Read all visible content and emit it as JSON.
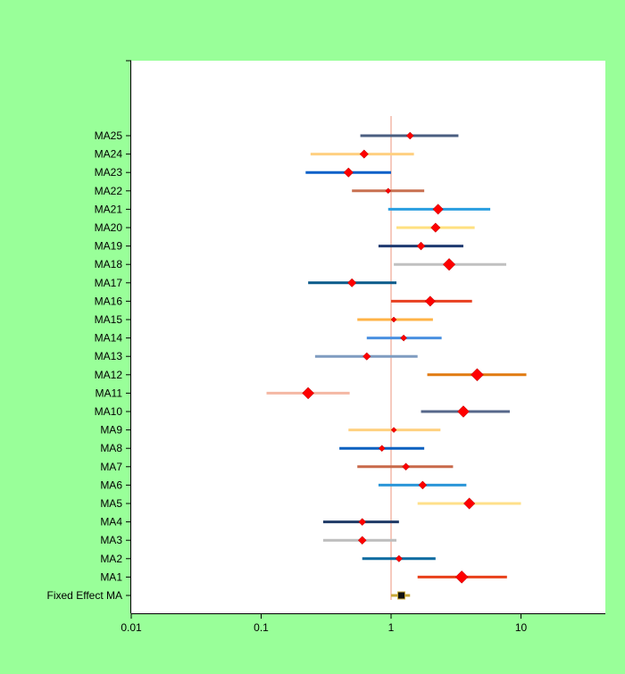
{
  "chart_data": {
    "type": "forest",
    "title": "",
    "xlabel": "",
    "ylabel": "",
    "x_scale": "log",
    "xlim": [
      0.01,
      45
    ],
    "x_ticks": [
      0.01,
      0.1,
      1,
      10
    ],
    "x_tick_labels": [
      "0.01",
      "0.1",
      "1",
      "10"
    ],
    "reference_line": 1,
    "colors": {
      "background": "#99ff99",
      "plot_area": "#ffffff",
      "reference_line": "#f4b9a8",
      "marker": "#ff0000"
    },
    "studies": [
      {
        "label": "Fixed Effect MA",
        "estimate": 1.2,
        "lower": 1.0,
        "upper": 1.4,
        "weight": 1.0,
        "color": "#c8a838",
        "marker_shape": "square"
      },
      {
        "label": "MA1",
        "estimate": 3.5,
        "lower": 1.6,
        "upper": 7.8,
        "weight": 1.0,
        "color": "#e8401a"
      },
      {
        "label": "MA2",
        "estimate": 1.15,
        "lower": 0.6,
        "upper": 2.2,
        "weight": 0.35,
        "color": "#0a6aa0"
      },
      {
        "label": "MA3",
        "estimate": 0.6,
        "lower": 0.3,
        "upper": 1.1,
        "weight": 0.5,
        "color": "#bdbdbd"
      },
      {
        "label": "MA4",
        "estimate": 0.6,
        "lower": 0.3,
        "upper": 1.15,
        "weight": 0.4,
        "color": "#1f3a66"
      },
      {
        "label": "MA5",
        "estimate": 4.0,
        "lower": 1.6,
        "upper": 10.0,
        "weight": 0.85,
        "color": "#ffe08a"
      },
      {
        "label": "MA6",
        "estimate": 1.75,
        "lower": 0.8,
        "upper": 3.8,
        "weight": 0.5,
        "color": "#2a96d8"
      },
      {
        "label": "MA7",
        "estimate": 1.3,
        "lower": 0.55,
        "upper": 3.0,
        "weight": 0.4,
        "color": "#c8694a"
      },
      {
        "label": "MA8",
        "estimate": 0.85,
        "lower": 0.4,
        "upper": 1.8,
        "weight": 0.3,
        "color": "#0a60c0"
      },
      {
        "label": "MA9",
        "estimate": 1.05,
        "lower": 0.47,
        "upper": 2.4,
        "weight": 0.2,
        "color": "#ffd180"
      },
      {
        "label": "MA10",
        "estimate": 3.6,
        "lower": 1.7,
        "upper": 8.2,
        "weight": 0.9,
        "color": "#56678a"
      },
      {
        "label": "MA11",
        "estimate": 0.23,
        "lower": 0.11,
        "upper": 0.48,
        "weight": 0.9,
        "color": "#f4b8a4"
      },
      {
        "label": "MA12",
        "estimate": 4.6,
        "lower": 1.9,
        "upper": 11.0,
        "weight": 1.0,
        "color": "#e07a10"
      },
      {
        "label": "MA13",
        "estimate": 0.65,
        "lower": 0.26,
        "upper": 1.6,
        "weight": 0.45,
        "color": "#7f9cc0"
      },
      {
        "label": "MA14",
        "estimate": 1.25,
        "lower": 0.65,
        "upper": 2.45,
        "weight": 0.3,
        "color": "#4a90e0"
      },
      {
        "label": "MA15",
        "estimate": 1.05,
        "lower": 0.55,
        "upper": 2.1,
        "weight": 0.2,
        "color": "#ffb347"
      },
      {
        "label": "MA16",
        "estimate": 2.0,
        "lower": 1.0,
        "upper": 4.2,
        "weight": 0.75,
        "color": "#e84020"
      },
      {
        "label": "MA17",
        "estimate": 0.5,
        "lower": 0.23,
        "upper": 1.1,
        "weight": 0.55,
        "color": "#0a5a8a"
      },
      {
        "label": "MA18",
        "estimate": 2.8,
        "lower": 1.05,
        "upper": 7.7,
        "weight": 0.95,
        "color": "#c0c0c0"
      },
      {
        "label": "MA19",
        "estimate": 1.7,
        "lower": 0.8,
        "upper": 3.6,
        "weight": 0.5,
        "color": "#1f3a70"
      },
      {
        "label": "MA20",
        "estimate": 2.2,
        "lower": 1.1,
        "upper": 4.4,
        "weight": 0.65,
        "color": "#ffe080"
      },
      {
        "label": "MA21",
        "estimate": 2.3,
        "lower": 0.95,
        "upper": 5.8,
        "weight": 0.75,
        "color": "#2a9ee0"
      },
      {
        "label": "MA22",
        "estimate": 0.95,
        "lower": 0.5,
        "upper": 1.8,
        "weight": 0.2,
        "color": "#c87050"
      },
      {
        "label": "MA23",
        "estimate": 0.47,
        "lower": 0.22,
        "upper": 1.0,
        "weight": 0.65,
        "color": "#0a60c8"
      },
      {
        "label": "MA24",
        "estimate": 0.62,
        "lower": 0.24,
        "upper": 1.5,
        "weight": 0.55,
        "color": "#ffd080"
      },
      {
        "label": "MA25",
        "estimate": 1.4,
        "lower": 0.58,
        "upper": 3.3,
        "weight": 0.4,
        "color": "#4a5e80"
      }
    ]
  }
}
